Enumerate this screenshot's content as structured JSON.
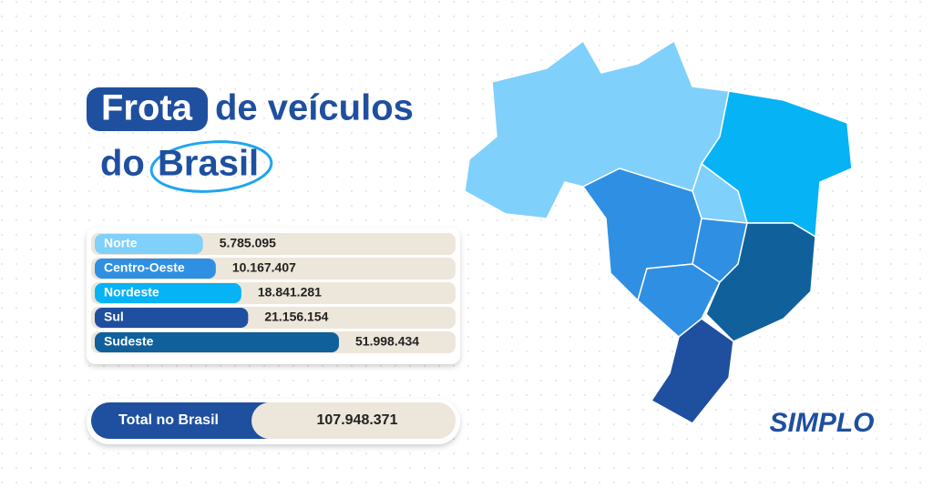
{
  "chart_data": {
    "type": "bar",
    "title_parts": [
      "Frota",
      "de veículos",
      "do",
      "Brasil"
    ],
    "categories": [
      "Norte",
      "Centro-Oeste",
      "Nordeste",
      "Sul",
      "Sudeste"
    ],
    "values": [
      5785095,
      10167407,
      18841281,
      21156154,
      51998434
    ],
    "value_labels": [
      "5.785.095",
      "10.167.407",
      "18.841.281",
      "21.156.154",
      "51.998.434"
    ],
    "colors": [
      "#7fd0fb",
      "#2f8fe3",
      "#06b3f4",
      "#1f4f9f",
      "#10609b"
    ],
    "total": {
      "label": "Total no Brasil",
      "value": 107948371,
      "value_label": "107.948.371"
    },
    "brand": "SIMPLO"
  }
}
